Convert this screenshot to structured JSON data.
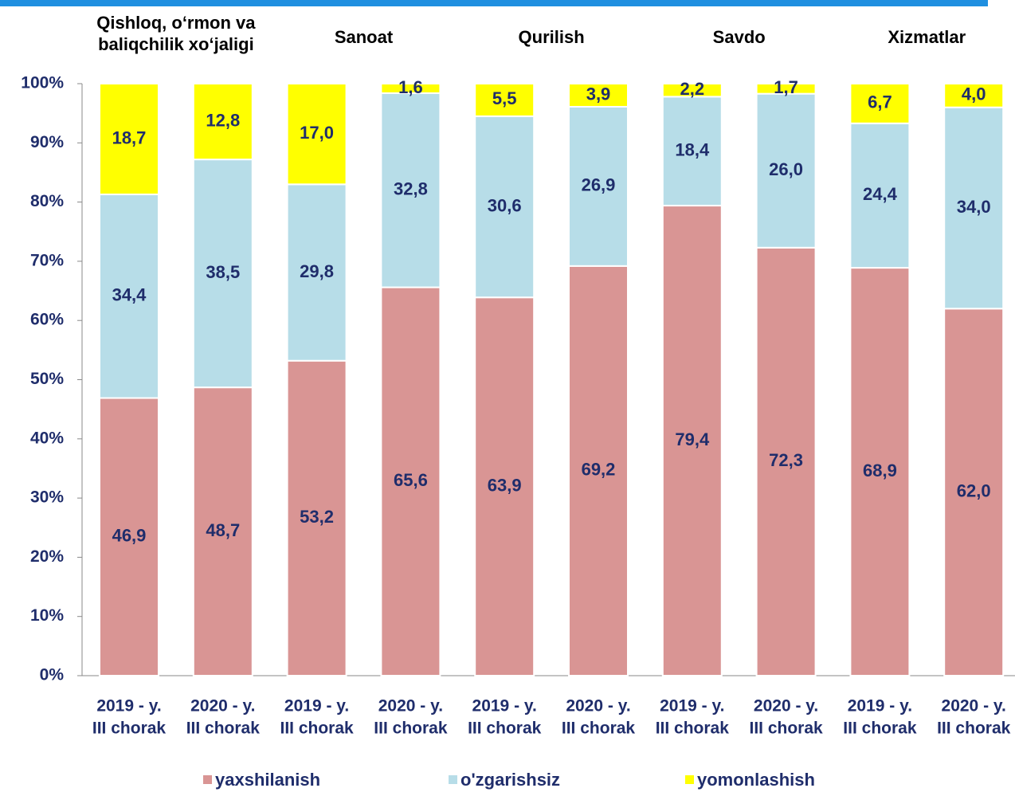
{
  "chart_data": {
    "type": "stacked_bar",
    "groups": [
      [
        "Qishloq, o‘rmon va",
        "baliqchilik xo‘jaligi"
      ],
      [
        "Sanoat"
      ],
      [
        "Qurilish"
      ],
      [
        "Savdo"
      ],
      [
        "Xizmatlar"
      ]
    ],
    "categories": [
      [
        "2019 - y.",
        "III chorak"
      ],
      [
        "2020 - y.",
        "III chorak"
      ],
      [
        "2019 - y.",
        "III chorak"
      ],
      [
        "2020 - y.",
        "III chorak"
      ],
      [
        "2019 - y.",
        "III chorak"
      ],
      [
        "2020 - y.",
        "III chorak"
      ],
      [
        "2019 - y.",
        "III chorak"
      ],
      [
        "2020 - y.",
        "III chorak"
      ],
      [
        "2019 - y.",
        "III chorak"
      ],
      [
        "2020 - y.",
        "III chorak"
      ]
    ],
    "series": [
      {
        "name": "yaxshilanish",
        "color": "#d99594",
        "values": [
          46.9,
          48.7,
          53.2,
          65.6,
          63.9,
          69.2,
          79.4,
          72.3,
          68.9,
          62.0
        ],
        "value_labels": [
          "46,9",
          "48,7",
          "53,2",
          "65,6",
          "63,9",
          "69,2",
          "79,4",
          "72,3",
          "68,9",
          "62,0"
        ]
      },
      {
        "name": "o'zgarishsiz",
        "color": "#b7dde8",
        "values": [
          34.4,
          38.5,
          29.8,
          32.8,
          30.6,
          26.9,
          18.4,
          26.0,
          24.4,
          34.0
        ],
        "value_labels": [
          "34,4",
          "38,5",
          "29,8",
          "32,8",
          "30,6",
          "26,9",
          "18,4",
          "26,0",
          "24,4",
          "34,0"
        ]
      },
      {
        "name": "yomonlashish",
        "color": "#ffff00",
        "values": [
          18.7,
          12.8,
          17.0,
          1.6,
          5.5,
          3.9,
          2.2,
          1.7,
          6.7,
          4.0
        ],
        "value_labels": [
          "18,7",
          "12,8",
          "17,0",
          "1,6",
          "5,5",
          "3,9",
          "2,2",
          "1,7",
          "6,7",
          "4,0"
        ]
      }
    ],
    "ylim": [
      0,
      100
    ],
    "yticks": [
      {
        "value": 0,
        "label": "0%"
      },
      {
        "value": 10,
        "label": "10%"
      },
      {
        "value": 20,
        "label": "20%"
      },
      {
        "value": 30,
        "label": "30%"
      },
      {
        "value": 40,
        "label": "40%"
      },
      {
        "value": 50,
        "label": "50%"
      },
      {
        "value": 60,
        "label": "60%"
      },
      {
        "value": 70,
        "label": "70%"
      },
      {
        "value": 80,
        "label": "80%"
      },
      {
        "value": 90,
        "label": "90%"
      },
      {
        "value": 100,
        "label": "100%"
      }
    ],
    "legend": "bottom"
  }
}
